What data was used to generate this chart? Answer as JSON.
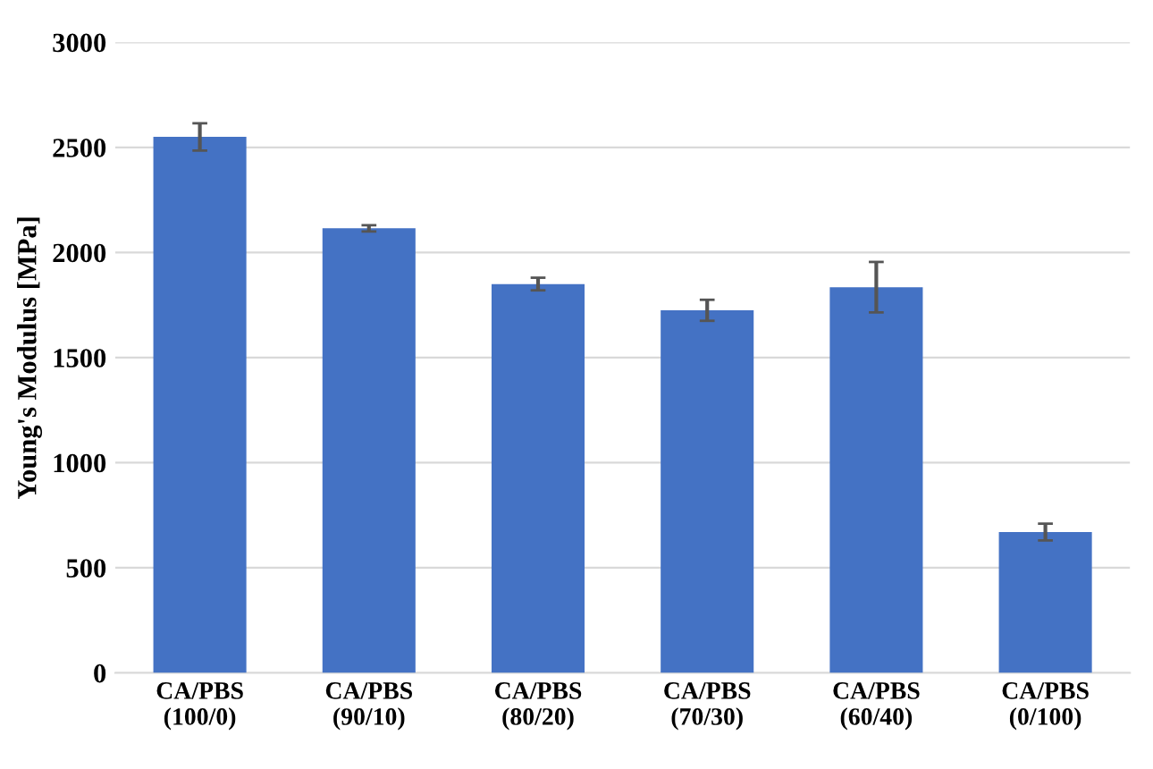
{
  "chart_data": {
    "type": "bar",
    "ylabel": "Young's Modulus [MPa]",
    "categories": [
      "CA/PBS\n(100/0)",
      "CA/PBS\n(90/10)",
      "CA/PBS\n(80/20)",
      "CA/PBS\n(70/30)",
      "CA/PBS\n(60/40)",
      "CA/PBS\n(0/100)"
    ],
    "values": [
      2550,
      2115,
      1850,
      1725,
      1835,
      670
    ],
    "errors": [
      65,
      15,
      30,
      50,
      120,
      40
    ],
    "color": "#4472c4",
    "ylim": [
      0,
      3000
    ],
    "yticks": [
      0,
      500,
      1000,
      1500,
      2000,
      2500,
      3000
    ],
    "grid": "y"
  }
}
